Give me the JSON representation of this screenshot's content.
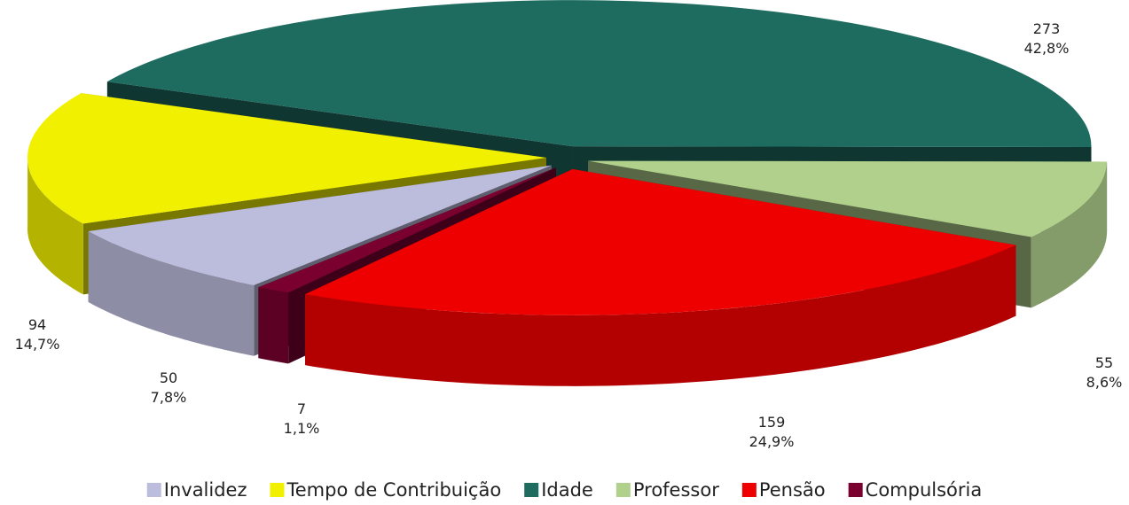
{
  "chart_data": {
    "type": "pie",
    "categories": [
      "Invalidez",
      "Tempo de Contribuição",
      "Idade",
      "Professor",
      "Pensão",
      "Compulsória"
    ],
    "values": [
      50,
      94,
      273,
      55,
      159,
      7
    ],
    "percentages": [
      {
        "value": 7.8,
        "label": "7,8%"
      },
      {
        "value": 14.7,
        "label": "14,7%"
      },
      {
        "value": 42.8,
        "label": "42,8%"
      },
      {
        "value": 8.6,
        "label": "8,6%"
      },
      {
        "value": 24.9,
        "label": "24,9%"
      },
      {
        "value": 1.1,
        "label": "1,1%"
      }
    ],
    "colors": [
      "#bcbcdc",
      "#f0f000",
      "#1e6b5f",
      "#b0d08c",
      "#ee0000",
      "#7a0030"
    ],
    "legend": "bottom"
  }
}
